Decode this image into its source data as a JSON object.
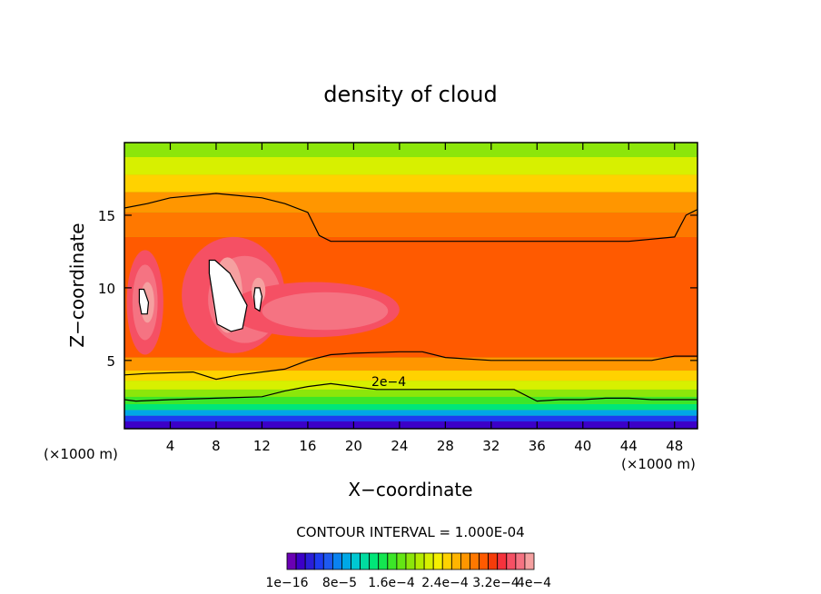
{
  "chart_data": {
    "type": "heatmap",
    "title": "density of cloud",
    "xlabel": "X−coordinate",
    "ylabel": "Z−coordinate",
    "x_unit_left": "(×1000 m)",
    "x_unit_right": "(×1000 m)",
    "xlim": [
      0,
      50
    ],
    "ylim": [
      0.3,
      20
    ],
    "x_ticks": [
      4,
      8,
      12,
      16,
      20,
      24,
      28,
      32,
      36,
      40,
      44,
      48
    ],
    "x_tick_labels": [
      "4",
      "8",
      "12",
      "16",
      "20",
      "24",
      "28",
      "32",
      "36",
      "40",
      "44",
      "48"
    ],
    "y_ticks": [
      5,
      10,
      15
    ],
    "y_tick_labels": [
      "5",
      "10",
      "15"
    ],
    "contour_interval_text": "CONTOUR INTERVAL = 1.000E-04",
    "contour_label": "2e−4",
    "colorbar": {
      "colors": [
        "#6a00b4",
        "#3c00c8",
        "#2a1ed8",
        "#1e3cf0",
        "#1e5af0",
        "#0a82f0",
        "#00a8e6",
        "#00c8d2",
        "#00dca0",
        "#00e678",
        "#14e650",
        "#3ce628",
        "#64e614",
        "#8ce60a",
        "#b4eb00",
        "#d7f000",
        "#f5f000",
        "#ffd200",
        "#ffb400",
        "#ff9600",
        "#ff7800",
        "#ff5a00",
        "#f53c0a",
        "#f5323c",
        "#f55064",
        "#f57382",
        "#f5a0a0"
      ],
      "labels": [
        "1e−16",
        "8e−5",
        "1.6e−4",
        "2.4e−4",
        "3.2e−4",
        "4e−4"
      ]
    },
    "bands": [
      {
        "z": 0.3,
        "level": 1
      },
      {
        "z": 0.8,
        "level": 3
      },
      {
        "z": 1.2,
        "level": 6
      },
      {
        "z": 1.6,
        "level": 9
      },
      {
        "z": 2.0,
        "level": 11
      },
      {
        "z": 2.5,
        "level": 13
      },
      {
        "z": 3.0,
        "level": 15
      },
      {
        "z": 3.6,
        "level": 17
      },
      {
        "z": 4.3,
        "level": 19
      },
      {
        "z": 5.2,
        "level": 21
      },
      {
        "z": 13.5,
        "level": 20
      },
      {
        "z": 15.2,
        "level": 19
      },
      {
        "z": 16.6,
        "level": 17
      },
      {
        "z": 17.8,
        "level": 15
      },
      {
        "z": 19.0,
        "level": 13
      }
    ],
    "blobs": [
      {
        "x": 1.8,
        "z": 9.0,
        "rx": 1.6,
        "rz": 3.6,
        "level": 24
      },
      {
        "x": 1.8,
        "z": 9.0,
        "rx": 1.1,
        "rz": 2.6,
        "level": 25
      },
      {
        "x": 2.0,
        "z": 9.0,
        "rx": 0.6,
        "rz": 1.4,
        "level": 26
      },
      {
        "x": 9.5,
        "z": 9.5,
        "rx": 4.5,
        "rz": 4.0,
        "level": 24
      },
      {
        "x": 10.5,
        "z": 9.2,
        "rx": 3.2,
        "rz": 3.0,
        "level": 25
      },
      {
        "x": 16.5,
        "z": 8.5,
        "rx": 7.5,
        "rz": 1.9,
        "level": 24
      },
      {
        "x": 17.5,
        "z": 8.4,
        "rx": 5.5,
        "rz": 1.3,
        "level": 25
      },
      {
        "x": 9.0,
        "z": 9.5,
        "rx": 1.3,
        "rz": 2.6,
        "level": 26
      },
      {
        "x": 11.7,
        "z": 9.8,
        "rx": 0.6,
        "rz": 0.9,
        "level": 26
      }
    ],
    "contour_lines": [
      {
        "level": "2e-4",
        "x": [
          0,
          1,
          4,
          8,
          12,
          14,
          16,
          18,
          19,
          20,
          22,
          24,
          26,
          28,
          30,
          32,
          34,
          36,
          38,
          40,
          42,
          44,
          46,
          48,
          50
        ],
        "z": [
          2.3,
          2.2,
          2.3,
          2.4,
          2.5,
          2.9,
          3.2,
          3.4,
          3.3,
          3.2,
          3.0,
          3.0,
          3.0,
          3.0,
          3.0,
          3.0,
          3.0,
          2.2,
          2.3,
          2.3,
          2.4,
          2.4,
          2.3,
          2.3,
          2.3
        ]
      },
      {
        "level": "4e-4",
        "x": [
          0,
          2,
          6,
          8,
          10,
          14,
          16,
          18,
          20,
          24,
          26,
          28,
          32,
          36,
          40,
          44,
          46,
          48,
          50
        ],
        "z": [
          4.0,
          4.1,
          4.2,
          3.7,
          4.0,
          4.4,
          5.0,
          5.4,
          5.5,
          5.6,
          5.6,
          5.2,
          5.0,
          5.0,
          5.0,
          5.0,
          5.0,
          5.3,
          5.3
        ]
      },
      {
        "level": "upper",
        "x": [
          0,
          2,
          4,
          8,
          12,
          14,
          16,
          17,
          18,
          20,
          24,
          28,
          32,
          36,
          40,
          44,
          48,
          49,
          50
        ],
        "z": [
          15.5,
          15.8,
          16.2,
          16.5,
          16.2,
          15.8,
          15.2,
          13.6,
          13.2,
          13.2,
          13.2,
          13.2,
          13.2,
          13.2,
          13.2,
          13.2,
          13.5,
          15.0,
          15.4
        ]
      },
      {
        "level": "core-left",
        "x": [
          1.3,
          1.7,
          2.1,
          2.0,
          1.5,
          1.3
        ],
        "z": [
          9.9,
          9.9,
          9.0,
          8.2,
          8.2,
          9.0
        ]
      },
      {
        "level": "core-mid",
        "x": [
          7.4,
          7.9,
          9.2,
          10.7,
          10.3,
          9.3,
          8.1,
          7.4
        ],
        "z": [
          11.9,
          11.9,
          11.0,
          8.8,
          7.2,
          7.0,
          7.5,
          11.0
        ]
      },
      {
        "level": "core-small",
        "x": [
          11.4,
          11.8,
          12.0,
          11.8,
          11.4,
          11.3
        ],
        "z": [
          10.0,
          10.0,
          9.4,
          8.4,
          8.6,
          9.4
        ]
      }
    ]
  }
}
